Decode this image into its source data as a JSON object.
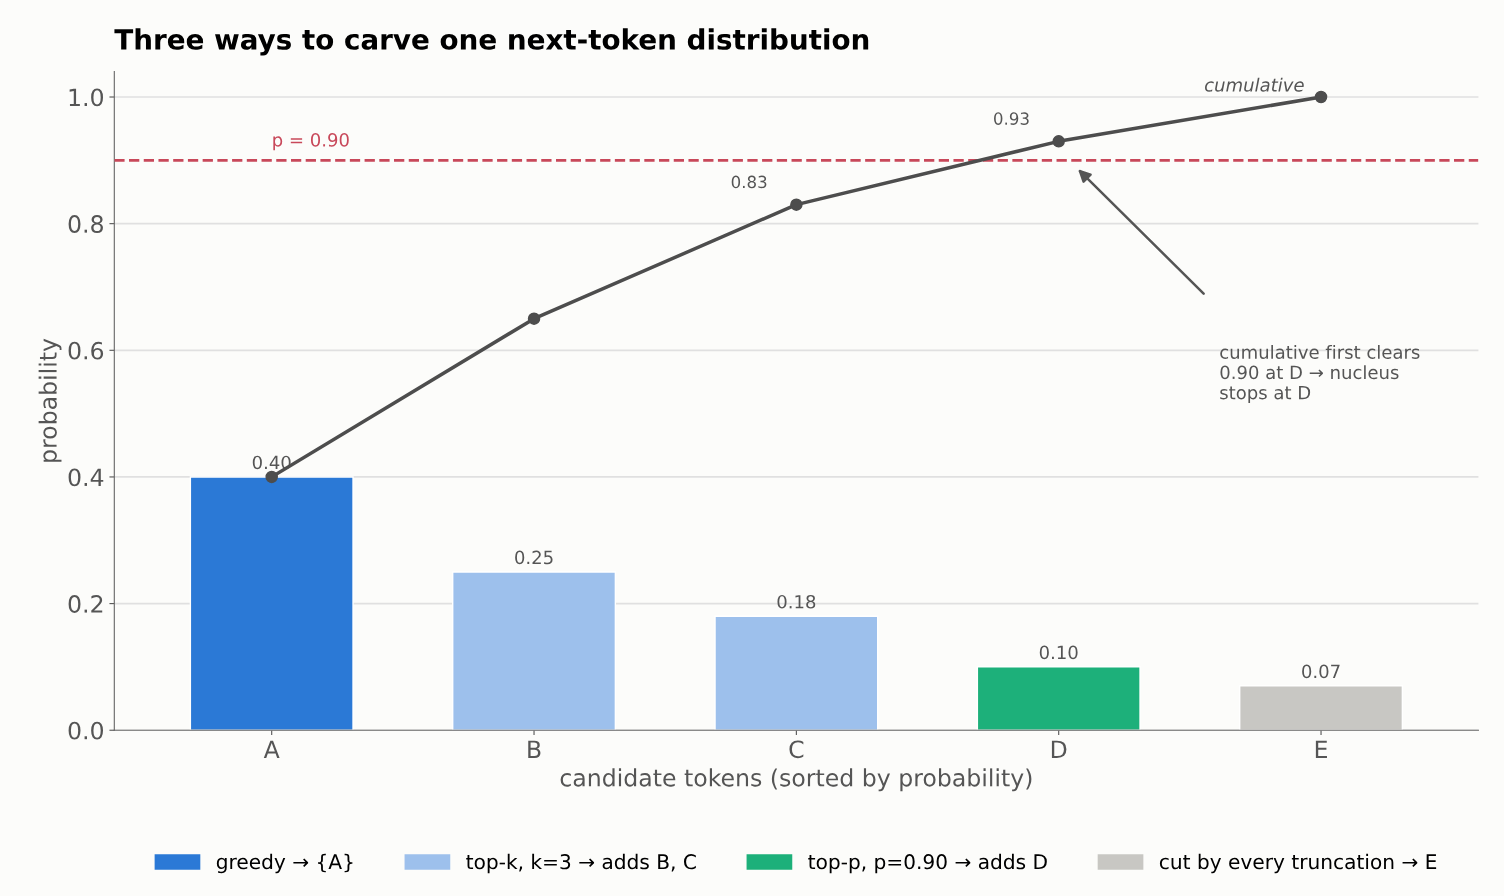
{
  "chart_data": {
    "type": "bar",
    "title": "Three ways to carve one next-token distribution",
    "xlabel": "candidate tokens (sorted by probability)",
    "ylabel": "probability",
    "categories": [
      "A",
      "B",
      "C",
      "D",
      "E"
    ],
    "series": [
      {
        "name": "greedy → {A}",
        "color": "#2b79d6",
        "values": [
          0.4,
          null,
          null,
          null,
          null
        ],
        "value_labels": [
          "0.40",
          null,
          null,
          null,
          null
        ]
      },
      {
        "name": "top-k, k=3 → adds B, C",
        "color": "#9dc0ec",
        "values": [
          null,
          0.25,
          0.18,
          null,
          null
        ],
        "value_labels": [
          null,
          "0.25",
          "0.18",
          null,
          null
        ]
      },
      {
        "name": "top-p, p=0.90 → adds D",
        "color": "#1db07a",
        "values": [
          null,
          null,
          null,
          0.1,
          null
        ],
        "value_labels": [
          null,
          null,
          null,
          "0.10",
          null
        ]
      },
      {
        "name": "cut by every truncation → E",
        "color": "#c8c7c3",
        "values": [
          null,
          null,
          null,
          null,
          0.07
        ],
        "value_labels": [
          null,
          null,
          null,
          null,
          "0.07"
        ]
      },
      {
        "name": "cumulative",
        "type": "line",
        "color": "#4d4d4d",
        "marker": "circle",
        "values": [
          0.4,
          0.65,
          0.83,
          0.93,
          1.0
        ],
        "value_labels": [
          null,
          null,
          "0.83",
          "0.93",
          null
        ]
      }
    ],
    "ylim": [
      0.0,
      1.04
    ],
    "yticks": [
      {
        "value": 0,
        "label": "0.0"
      },
      0.2,
      0.4,
      0.6,
      0.8,
      {
        "value": 1,
        "label": "1.0"
      }
    ],
    "ref_lines": [
      {
        "axis": "y",
        "value": 0.9,
        "label": "p = 0.90",
        "color": "#c8485a",
        "line_style": "dashed"
      }
    ],
    "annotations": [
      "cumulative first clears\n0.90 at D → nucleus\nstops at D"
    ],
    "grid": "y",
    "legend": "bottom"
  }
}
